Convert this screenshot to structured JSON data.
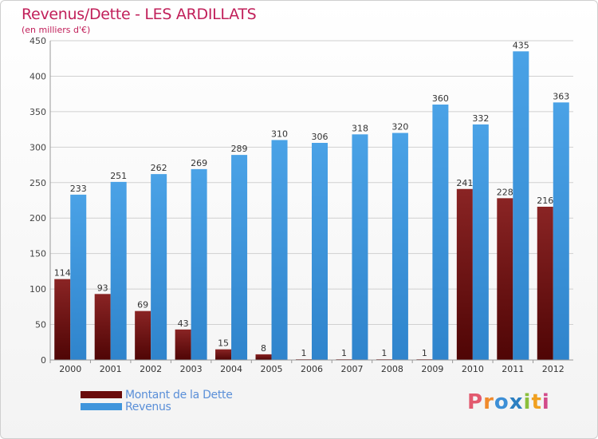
{
  "chart_data": {
    "type": "bar",
    "title": "Revenus/Dette - LES ARDILLATS",
    "subtitle": "(en milliers d'€)",
    "categories": [
      "2000",
      "2001",
      "2002",
      "2003",
      "2004",
      "2005",
      "2006",
      "2007",
      "2008",
      "2009",
      "2010",
      "2011",
      "2012"
    ],
    "series": [
      {
        "name": "Montant de la Dette",
        "color": "#7a1010",
        "values": [
          114,
          93,
          69,
          43,
          15,
          8,
          1,
          1,
          1,
          1,
          241,
          228,
          216
        ]
      },
      {
        "name": "Revenus",
        "color": "#3f95dc",
        "values": [
          233,
          251,
          262,
          269,
          289,
          310,
          306,
          318,
          320,
          360,
          332,
          435,
          363
        ]
      }
    ],
    "ylim": [
      0,
      450
    ],
    "yticks": [
      0,
      50,
      100,
      150,
      200,
      250,
      300,
      350,
      400,
      450
    ],
    "grid": true,
    "legend_placement": "bottom-left"
  },
  "logo_text": "Proxiti"
}
